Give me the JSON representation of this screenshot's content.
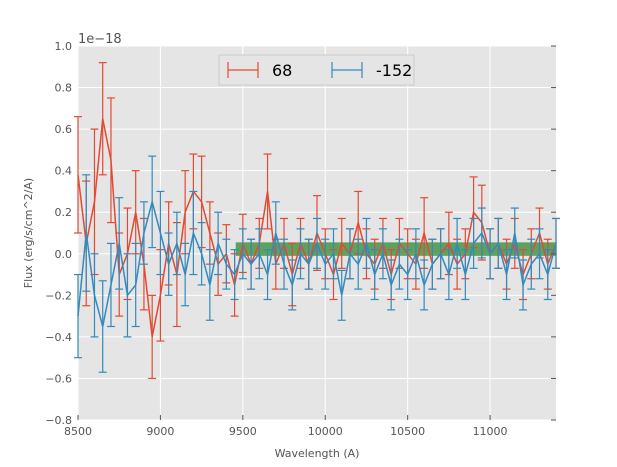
{
  "chart_data": {
    "type": "line",
    "title": "",
    "xlabel": "Wavelength (A)",
    "ylabel": "Flux (erg/s/cm^2/A)",
    "y_offset_label": "1e−18",
    "xlim": [
      8500,
      11400
    ],
    "ylim": [
      -0.8,
      1.0
    ],
    "xticks": [
      "8500",
      "9000",
      "9500",
      "10000",
      "10500",
      "11000"
    ],
    "xtick_values": [
      8500,
      9000,
      9500,
      10000,
      10500,
      11000
    ],
    "yticks": [
      "−0.8",
      "−0.6",
      "−0.4",
      "−0.2",
      "0.0",
      "0.2",
      "0.4",
      "0.6",
      "0.8",
      "1.0"
    ],
    "ytick_values": [
      -0.8,
      -0.6,
      -0.4,
      -0.2,
      0.0,
      0.2,
      0.4,
      0.6,
      0.8,
      1.0
    ],
    "grid": true,
    "legend_position": "top-center",
    "band": {
      "x": [
        9457,
        11400
      ],
      "y": [
        -0.01,
        0.055
      ],
      "color": "#2e8b2e"
    },
    "x": [
      8500,
      8550,
      8600,
      8650,
      8700,
      8750,
      8800,
      8850,
      8900,
      8950,
      9000,
      9050,
      9100,
      9150,
      9200,
      9250,
      9300,
      9350,
      9400,
      9450,
      9500,
      9550,
      9600,
      9650,
      9700,
      9750,
      9800,
      9850,
      9900,
      9950,
      10000,
      10050,
      10100,
      10150,
      10200,
      10250,
      10300,
      10350,
      10400,
      10450,
      10500,
      10550,
      10600,
      10650,
      10700,
      10750,
      10800,
      10850,
      10900,
      10950,
      11000,
      11050,
      11100,
      11150,
      11200,
      11250,
      11300,
      11350,
      11400
    ],
    "series": [
      {
        "name": "68",
        "color": "#E24A33",
        "values": [
          0.38,
          0.05,
          0.25,
          0.65,
          0.45,
          -0.1,
          0.0,
          0.2,
          -0.05,
          -0.4,
          -0.2,
          0.05,
          -0.1,
          0.2,
          0.3,
          0.25,
          0.1,
          -0.05,
          0.0,
          -0.15,
          0.05,
          -0.05,
          0.05,
          0.3,
          -0.05,
          0.05,
          -0.1,
          0.05,
          -0.05,
          0.1,
          0.0,
          -0.1,
          0.05,
          0.0,
          0.15,
          0.0,
          -0.05,
          0.05,
          -0.1,
          0.05,
          0.0,
          -0.05,
          0.1,
          -0.05,
          0.0,
          0.05,
          -0.05,
          0.0,
          0.2,
          0.15,
          0.0,
          0.05,
          -0.05,
          0.05,
          -0.1,
          0.0,
          0.1,
          -0.05,
          0.05
        ],
        "yerr": [
          0.28,
          0.3,
          0.35,
          0.27,
          0.3,
          0.2,
          0.22,
          0.2,
          0.22,
          0.2,
          0.22,
          0.2,
          0.25,
          0.2,
          0.18,
          0.22,
          0.15,
          0.15,
          0.14,
          0.15,
          0.14,
          0.12,
          0.12,
          0.18,
          0.12,
          0.12,
          0.15,
          0.12,
          0.12,
          0.18,
          0.12,
          0.12,
          0.12,
          0.12,
          0.15,
          0.12,
          0.12,
          0.12,
          0.12,
          0.12,
          0.12,
          0.12,
          0.17,
          0.12,
          0.12,
          0.15,
          0.12,
          0.12,
          0.17,
          0.18,
          0.12,
          0.12,
          0.12,
          0.12,
          0.12,
          0.12,
          0.12,
          0.12,
          0.12
        ]
      },
      {
        "name": "-152",
        "color": "#348ABD",
        "values": [
          -0.3,
          0.1,
          -0.2,
          -0.35,
          -0.15,
          0.05,
          -0.2,
          -0.15,
          0.1,
          0.25,
          0.1,
          -0.05,
          0.05,
          -0.1,
          0.1,
          0.0,
          -0.15,
          0.05,
          -0.05,
          -0.1,
          0.0,
          -0.05,
          0.0,
          -0.1,
          0.1,
          -0.05,
          -0.15,
          0.0,
          -0.05,
          0.05,
          -0.05,
          0.0,
          -0.2,
          0.0,
          -0.05,
          0.05,
          -0.1,
          0.0,
          -0.15,
          -0.05,
          -0.1,
          0.0,
          -0.15,
          -0.05,
          0.0,
          -0.1,
          0.05,
          -0.1,
          0.05,
          0.1,
          0.0,
          0.05,
          -0.1,
          0.1,
          -0.15,
          -0.05,
          0.0,
          -0.1,
          0.05
        ],
        "yerr": [
          0.2,
          0.28,
          0.2,
          0.22,
          0.2,
          0.22,
          0.2,
          0.2,
          0.15,
          0.22,
          0.2,
          0.15,
          0.15,
          0.15,
          0.2,
          0.15,
          0.17,
          0.15,
          0.12,
          0.12,
          0.12,
          0.12,
          0.12,
          0.12,
          0.15,
          0.12,
          0.12,
          0.12,
          0.12,
          0.12,
          0.12,
          0.12,
          0.12,
          0.12,
          0.12,
          0.12,
          0.12,
          0.12,
          0.12,
          0.12,
          0.12,
          0.12,
          0.12,
          0.12,
          0.12,
          0.12,
          0.12,
          0.12,
          0.12,
          0.12,
          0.12,
          0.12,
          0.12,
          0.12,
          0.12,
          0.12,
          0.12,
          0.12,
          0.12
        ]
      }
    ]
  }
}
